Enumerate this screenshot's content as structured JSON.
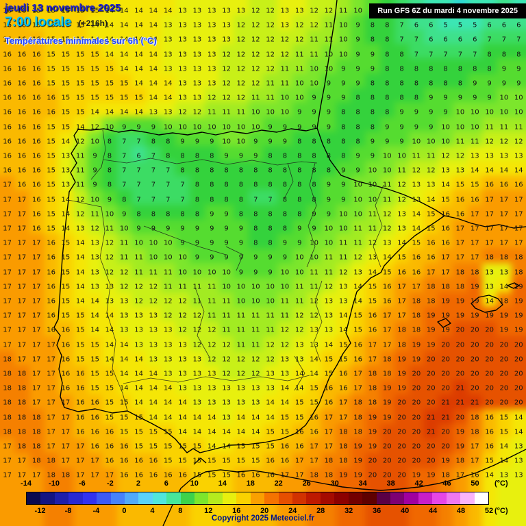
{
  "header": {
    "date": "jeudi 13 novembre 2025",
    "time": "7:00 locale",
    "offset": "(+216h)",
    "subtitle": "Températures minimales sur 6h (°C)",
    "run_info": "Run GFS 6Z du mardi 4 novembre 2025"
  },
  "footer": {
    "copyright": "Copyright 2025 Meteociel.fr",
    "unit": "(°C)"
  },
  "legend": {
    "min": -14,
    "max": 52,
    "top_labels": [
      -14,
      -10,
      -6,
      -2,
      2,
      6,
      10,
      14,
      18,
      22,
      26,
      30,
      34,
      38,
      42,
      46,
      50
    ],
    "bottom_labels": [
      -12,
      -8,
      -4,
      0,
      4,
      8,
      12,
      16,
      20,
      24,
      28,
      32,
      36,
      40,
      44,
      48,
      52
    ],
    "colors": [
      "#0a0a50",
      "#141482",
      "#1e1eaa",
      "#2828d2",
      "#3232f0",
      "#3c5af5",
      "#4682fa",
      "#50aafa",
      "#5ad2fa",
      "#50e6dc",
      "#46e69b",
      "#3cd24b",
      "#7ce62c",
      "#b4eb1e",
      "#e8f00e",
      "#fad200",
      "#faa000",
      "#f57300",
      "#e64f00",
      "#d23200",
      "#be1900",
      "#a50a00",
      "#8c0000",
      "#730000",
      "#5f0000",
      "#5a0046",
      "#7d0073",
      "#a000a0",
      "#c81ec8",
      "#e646e6",
      "#f078f0",
      "#fab4fa",
      "#ffffff"
    ]
  },
  "map_palette": {
    "4": "#2ed8d2",
    "5": "#3ce6b4",
    "6": "#3ee18c",
    "7": "#3cdc64",
    "8": "#34d23c",
    "9": "#55dc30",
    "10": "#7ce62c",
    "11": "#a2eb22",
    "12": "#c8f018",
    "13": "#e8f00e",
    "14": "#f5e606",
    "15": "#fad200",
    "16": "#fab900",
    "17": "#fa9b00",
    "18": "#f58000",
    "19": "#f06800",
    "20": "#e65200",
    "21": "#dc3c00"
  },
  "chart_data": {
    "type": "heatmap",
    "title": "Températures minimales sur 6h (°C)",
    "unit": "°C",
    "scale_min": -14,
    "scale_max": 52,
    "rows": 33,
    "cols": 36,
    "values": [
      [
        16,
        16,
        15,
        15,
        15,
        15,
        15,
        14,
        14,
        14,
        14,
        14,
        13,
        13,
        13,
        13,
        13,
        12,
        12,
        13,
        13,
        12,
        12,
        11,
        10,
        9,
        8,
        7,
        6,
        5,
        5,
        4,
        5,
        5,
        6,
        5
      ],
      [
        16,
        16,
        15,
        15,
        15,
        15,
        14,
        14,
        14,
        14,
        14,
        13,
        13,
        13,
        13,
        13,
        12,
        12,
        12,
        13,
        12,
        12,
        11,
        10,
        9,
        8,
        8,
        7,
        6,
        6,
        5,
        5,
        5,
        6,
        6,
        6
      ],
      [
        16,
        16,
        16,
        15,
        15,
        15,
        14,
        14,
        14,
        14,
        14,
        13,
        13,
        13,
        13,
        13,
        12,
        12,
        12,
        12,
        12,
        11,
        11,
        10,
        9,
        8,
        8,
        7,
        7,
        6,
        6,
        6,
        6,
        7,
        7,
        7
      ],
      [
        16,
        16,
        16,
        15,
        15,
        15,
        15,
        14,
        14,
        14,
        14,
        13,
        13,
        13,
        13,
        12,
        12,
        12,
        12,
        12,
        11,
        11,
        10,
        10,
        9,
        9,
        8,
        8,
        7,
        7,
        7,
        7,
        7,
        8,
        8,
        8
      ],
      [
        16,
        16,
        16,
        15,
        15,
        15,
        15,
        15,
        14,
        14,
        14,
        13,
        13,
        13,
        13,
        12,
        12,
        12,
        12,
        11,
        11,
        10,
        10,
        9,
        9,
        9,
        8,
        8,
        8,
        8,
        8,
        8,
        8,
        8,
        9,
        9
      ],
      [
        16,
        16,
        16,
        15,
        15,
        15,
        15,
        15,
        15,
        14,
        14,
        14,
        13,
        13,
        13,
        12,
        12,
        12,
        11,
        11,
        10,
        10,
        9,
        9,
        9,
        8,
        8,
        8,
        8,
        8,
        8,
        8,
        9,
        9,
        9,
        9
      ],
      [
        16,
        16,
        16,
        16,
        15,
        15,
        15,
        15,
        15,
        15,
        14,
        14,
        13,
        13,
        12,
        12,
        12,
        11,
        11,
        10,
        10,
        9,
        9,
        9,
        8,
        8,
        8,
        8,
        8,
        9,
        9,
        9,
        9,
        9,
        10,
        10
      ],
      [
        16,
        16,
        16,
        16,
        15,
        15,
        14,
        14,
        14,
        14,
        13,
        13,
        12,
        12,
        11,
        11,
        11,
        10,
        10,
        10,
        9,
        9,
        9,
        8,
        8,
        8,
        8,
        9,
        9,
        9,
        9,
        10,
        10,
        10,
        10,
        10
      ],
      [
        16,
        16,
        16,
        15,
        15,
        14,
        12,
        10,
        9,
        9,
        9,
        10,
        10,
        10,
        10,
        10,
        10,
        10,
        9,
        9,
        9,
        9,
        9,
        8,
        8,
        8,
        9,
        9,
        9,
        9,
        10,
        10,
        10,
        11,
        11,
        11
      ],
      [
        16,
        16,
        16,
        15,
        14,
        12,
        10,
        8,
        7,
        7,
        8,
        8,
        9,
        9,
        9,
        10,
        10,
        9,
        9,
        9,
        8,
        8,
        8,
        8,
        8,
        9,
        9,
        9,
        10,
        10,
        10,
        11,
        11,
        12,
        12,
        12
      ],
      [
        16,
        16,
        16,
        15,
        13,
        11,
        9,
        8,
        7,
        6,
        7,
        8,
        8,
        8,
        8,
        9,
        9,
        9,
        8,
        8,
        8,
        8,
        8,
        8,
        9,
        9,
        10,
        10,
        11,
        11,
        12,
        12,
        13,
        13,
        13,
        13
      ],
      [
        16,
        16,
        16,
        15,
        13,
        11,
        9,
        8,
        7,
        7,
        7,
        7,
        8,
        8,
        8,
        8,
        8,
        8,
        8,
        8,
        8,
        8,
        8,
        9,
        9,
        10,
        10,
        11,
        12,
        12,
        13,
        13,
        14,
        14,
        14,
        14
      ],
      [
        17,
        16,
        16,
        15,
        13,
        11,
        9,
        8,
        7,
        7,
        7,
        7,
        7,
        8,
        8,
        8,
        8,
        8,
        8,
        8,
        8,
        8,
        9,
        9,
        10,
        10,
        11,
        12,
        13,
        13,
        14,
        15,
        15,
        16,
        16,
        16
      ],
      [
        17,
        17,
        16,
        15,
        14,
        12,
        10,
        9,
        8,
        7,
        7,
        7,
        7,
        8,
        8,
        8,
        8,
        7,
        7,
        8,
        8,
        8,
        9,
        9,
        10,
        10,
        11,
        12,
        13,
        14,
        15,
        16,
        16,
        17,
        17,
        17
      ],
      [
        17,
        17,
        16,
        15,
        14,
        12,
        11,
        10,
        9,
        8,
        8,
        8,
        8,
        8,
        9,
        9,
        8,
        8,
        8,
        8,
        8,
        9,
        9,
        10,
        10,
        11,
        12,
        13,
        14,
        15,
        16,
        16,
        17,
        17,
        17,
        17
      ],
      [
        17,
        17,
        16,
        15,
        14,
        13,
        12,
        11,
        10,
        9,
        9,
        9,
        9,
        9,
        9,
        9,
        9,
        8,
        8,
        8,
        9,
        9,
        10,
        10,
        11,
        11,
        12,
        13,
        14,
        15,
        16,
        17,
        17,
        17,
        17,
        17
      ],
      [
        17,
        17,
        17,
        16,
        15,
        14,
        13,
        12,
        11,
        10,
        10,
        10,
        9,
        9,
        9,
        9,
        9,
        8,
        8,
        9,
        9,
        10,
        10,
        11,
        11,
        12,
        13,
        14,
        15,
        16,
        16,
        17,
        17,
        17,
        17,
        17
      ],
      [
        17,
        17,
        17,
        16,
        15,
        14,
        13,
        12,
        11,
        11,
        10,
        10,
        10,
        9,
        9,
        9,
        9,
        9,
        9,
        9,
        10,
        10,
        11,
        11,
        12,
        13,
        14,
        15,
        16,
        16,
        17,
        17,
        17,
        18,
        18,
        18
      ],
      [
        17,
        17,
        17,
        16,
        15,
        14,
        13,
        12,
        12,
        11,
        11,
        11,
        10,
        10,
        10,
        10,
        9,
        9,
        9,
        10,
        10,
        11,
        11,
        12,
        13,
        14,
        15,
        16,
        16,
        17,
        17,
        18,
        18,
        13,
        13,
        18
      ],
      [
        17,
        17,
        17,
        16,
        15,
        14,
        13,
        13,
        12,
        12,
        12,
        11,
        11,
        11,
        11,
        10,
        10,
        10,
        10,
        10,
        11,
        11,
        12,
        13,
        14,
        15,
        16,
        17,
        17,
        18,
        18,
        18,
        19,
        13,
        14,
        19
      ],
      [
        17,
        17,
        17,
        16,
        15,
        14,
        14,
        13,
        13,
        12,
        12,
        12,
        12,
        11,
        11,
        11,
        10,
        10,
        10,
        11,
        11,
        12,
        13,
        13,
        14,
        15,
        16,
        17,
        18,
        18,
        19,
        19,
        19,
        14,
        18,
        19
      ],
      [
        17,
        17,
        17,
        16,
        15,
        15,
        14,
        14,
        13,
        13,
        13,
        12,
        12,
        12,
        11,
        11,
        11,
        11,
        11,
        11,
        12,
        12,
        13,
        14,
        15,
        16,
        17,
        17,
        18,
        19,
        19,
        19,
        19,
        19,
        19,
        19
      ],
      [
        17,
        17,
        17,
        16,
        16,
        15,
        14,
        14,
        13,
        13,
        13,
        13,
        12,
        12,
        12,
        11,
        11,
        11,
        11,
        12,
        12,
        13,
        13,
        14,
        15,
        16,
        17,
        18,
        18,
        19,
        19,
        20,
        20,
        20,
        19,
        19
      ],
      [
        17,
        17,
        17,
        17,
        16,
        15,
        15,
        14,
        14,
        13,
        13,
        13,
        13,
        12,
        12,
        12,
        11,
        11,
        12,
        12,
        13,
        13,
        14,
        15,
        16,
        17,
        17,
        18,
        19,
        19,
        20,
        20,
        20,
        20,
        20,
        20
      ],
      [
        18,
        17,
        17,
        17,
        16,
        15,
        15,
        14,
        14,
        14,
        13,
        13,
        13,
        13,
        12,
        12,
        12,
        12,
        12,
        13,
        13,
        14,
        15,
        15,
        16,
        17,
        18,
        19,
        19,
        20,
        20,
        20,
        20,
        20,
        20,
        20
      ],
      [
        18,
        18,
        17,
        17,
        16,
        16,
        15,
        15,
        14,
        14,
        14,
        13,
        13,
        13,
        13,
        12,
        12,
        12,
        13,
        13,
        14,
        14,
        15,
        16,
        17,
        18,
        18,
        19,
        20,
        20,
        20,
        20,
        20,
        20,
        20,
        20
      ],
      [
        18,
        18,
        17,
        17,
        16,
        16,
        15,
        15,
        14,
        14,
        14,
        14,
        13,
        13,
        13,
        13,
        13,
        13,
        13,
        14,
        14,
        15,
        16,
        16,
        17,
        18,
        19,
        19,
        20,
        20,
        20,
        21,
        20,
        20,
        20,
        20
      ],
      [
        18,
        18,
        17,
        17,
        17,
        16,
        16,
        15,
        15,
        14,
        14,
        14,
        14,
        13,
        13,
        13,
        13,
        13,
        14,
        14,
        15,
        15,
        16,
        17,
        18,
        18,
        19,
        20,
        20,
        20,
        21,
        21,
        21,
        20,
        20,
        20
      ],
      [
        18,
        18,
        18,
        17,
        17,
        16,
        16,
        15,
        15,
        15,
        14,
        14,
        14,
        14,
        14,
        13,
        14,
        14,
        14,
        15,
        15,
        16,
        17,
        17,
        18,
        19,
        19,
        20,
        20,
        21,
        21,
        20,
        18,
        16,
        15,
        14
      ],
      [
        18,
        18,
        18,
        17,
        17,
        16,
        16,
        16,
        15,
        15,
        15,
        15,
        14,
        14,
        14,
        14,
        14,
        14,
        15,
        15,
        16,
        16,
        17,
        18,
        18,
        19,
        20,
        20,
        20,
        21,
        20,
        19,
        18,
        16,
        15,
        14
      ],
      [
        17,
        18,
        18,
        17,
        17,
        17,
        16,
        16,
        16,
        15,
        15,
        15,
        15,
        15,
        14,
        14,
        15,
        15,
        15,
        16,
        16,
        17,
        17,
        18,
        19,
        19,
        20,
        20,
        20,
        20,
        20,
        19,
        17,
        16,
        14,
        13
      ],
      [
        17,
        17,
        18,
        18,
        17,
        17,
        17,
        16,
        16,
        16,
        16,
        15,
        15,
        15,
        15,
        15,
        15,
        15,
        16,
        16,
        17,
        17,
        18,
        18,
        19,
        20,
        20,
        20,
        20,
        20,
        19,
        18,
        17,
        15,
        14,
        13
      ],
      [
        17,
        17,
        17,
        18,
        18,
        17,
        17,
        17,
        16,
        16,
        16,
        16,
        16,
        15,
        15,
        15,
        16,
        16,
        16,
        17,
        17,
        18,
        18,
        19,
        19,
        20,
        20,
        20,
        19,
        19,
        18,
        17,
        16,
        14,
        13,
        13
      ]
    ]
  }
}
